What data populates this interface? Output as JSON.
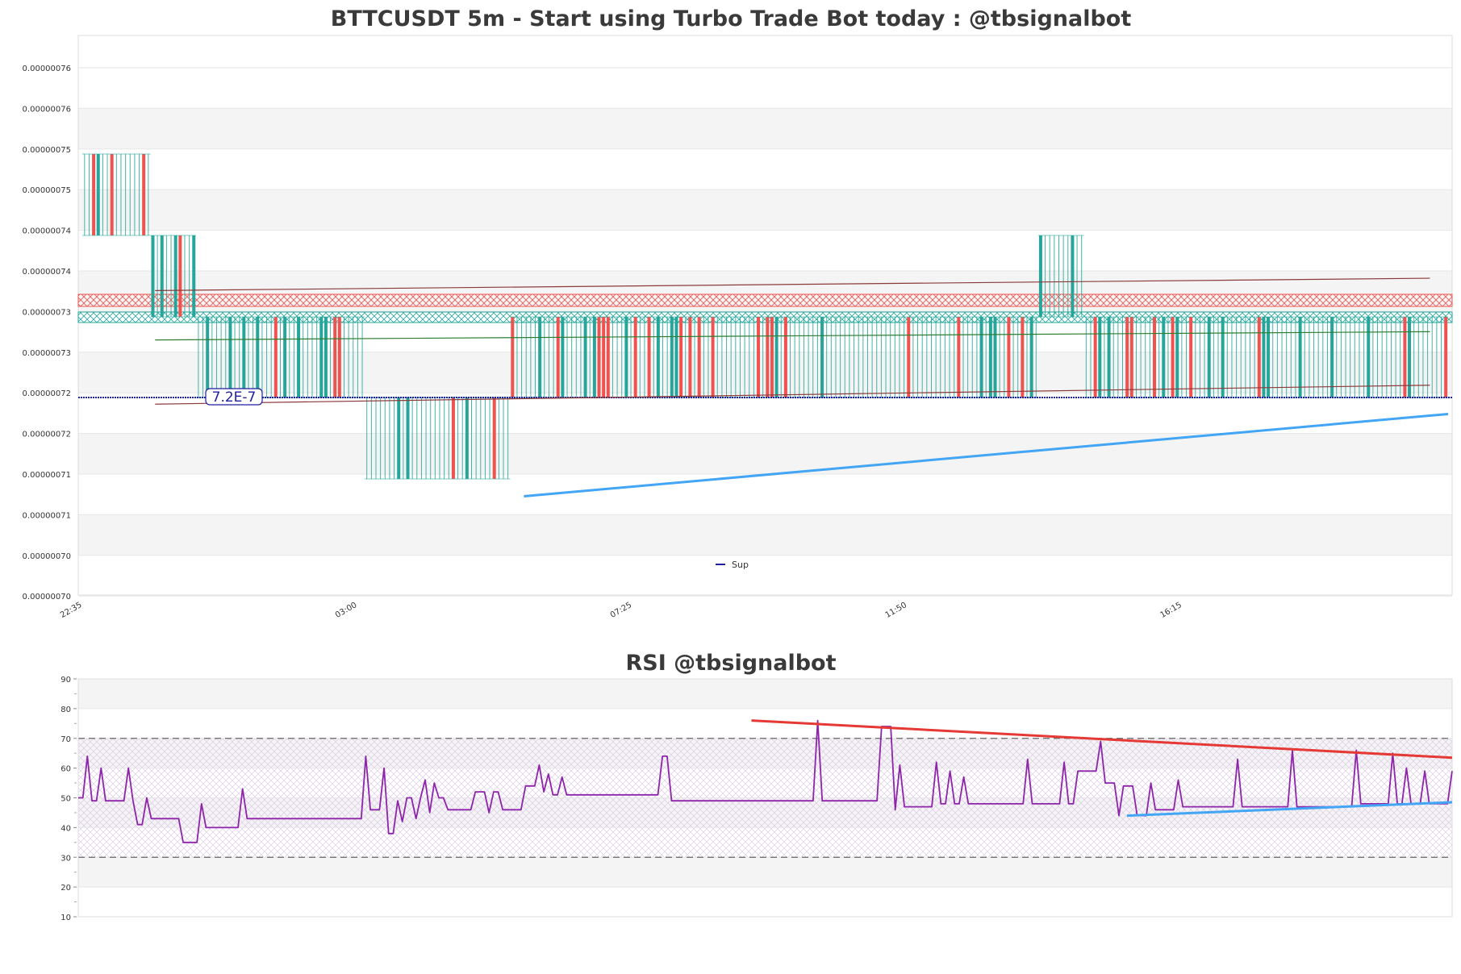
{
  "colors": {
    "bull": "#26a69a",
    "bear": "#ef5350",
    "support_level": "#1f1fa0",
    "rsi_line": "#8e24aa",
    "trend_red": "#e53935",
    "trend_blue": "#42a5f5",
    "band": "#f4f4f4",
    "grid": "#e6e6e6"
  },
  "chart_data": [
    {
      "type": "candlestick",
      "title": "BTTCUSDT 5m - Start using Turbo Trade Bot today : @tbsignalbot",
      "y_ticks": [
        "0.00000076",
        "0.00000076",
        "0.00000075",
        "0.00000075",
        "0.00000074",
        "0.00000074",
        "0.00000073",
        "0.00000073",
        "0.00000072",
        "0.00000072",
        "0.00000071",
        "0.00000071",
        "0.00000070",
        "0.00000070"
      ],
      "x_ticks": [
        "22:35",
        "03:00",
        "07:25",
        "11:50",
        "16:15"
      ],
      "ylim": [
        6.98e-07,
        7.66e-07
      ],
      "legend": [
        {
          "name": "Sup",
          "position": "bottom-center"
        }
      ],
      "support_label": "7.2E-7",
      "support_level": 7.2e-07,
      "segments": [
        {
          "from": 0,
          "to": 15,
          "top": 7.5e-07,
          "bottom": 7.4e-07
        },
        {
          "from": 15,
          "to": 25,
          "top": 7.4e-07,
          "bottom": 7.3e-07
        },
        {
          "from": 25,
          "to": 62,
          "top": 7.3e-07,
          "bottom": 7.2e-07
        },
        {
          "from": 62,
          "to": 94,
          "top": 7.2e-07,
          "bottom": 7.1e-07
        },
        {
          "from": 94,
          "to": 210,
          "top": 7.3e-07,
          "bottom": 7.2e-07
        },
        {
          "from": 210,
          "to": 220,
          "top": 7.4e-07,
          "bottom": 7.3e-07
        },
        {
          "from": 220,
          "to": 300,
          "top": 7.3e-07,
          "bottom": 7.2e-07
        }
      ],
      "resistance_zone": [
        7.31e-07,
        7.32e-07
      ],
      "support_zone": [
        7.295e-07,
        7.305e-07
      ],
      "trendlines": [
        {
          "color": "trend_blue",
          "x0": 97,
          "y0": 7.1e-07,
          "x1": 300,
          "y1": 7.2e-07
        },
        {
          "color": "dark_red",
          "x0": 16,
          "y0": 7.35e-07,
          "x1": 296,
          "y1": 7.365e-07
        },
        {
          "color": "dark_red",
          "x0": 16,
          "y0": 7.212e-07,
          "x1": 296,
          "y1": 7.235e-07
        },
        {
          "color": "dark_green",
          "x0": 16,
          "y0": 7.29e-07,
          "x1": 296,
          "y1": 7.3e-07
        }
      ]
    },
    {
      "type": "line",
      "title": "RSI @tbsignalbot",
      "y_ticks": [
        "90",
        "80",
        "70",
        "60",
        "50",
        "40",
        "30",
        "20",
        "10"
      ],
      "ylim": [
        10,
        90
      ],
      "overbought": 70,
      "oversold": 30,
      "series": [
        {
          "values": [
            50,
            50,
            64,
            49,
            49,
            60,
            49,
            49,
            49,
            49,
            49,
            60,
            49,
            41,
            41,
            50,
            43,
            43,
            43,
            43,
            43,
            43,
            43,
            35,
            35,
            35,
            35,
            48,
            40,
            40,
            40,
            40,
            40,
            40,
            40,
            40,
            53,
            43,
            43,
            43,
            43,
            43,
            43,
            43,
            43,
            43,
            43,
            43,
            43,
            43,
            43,
            43,
            43,
            43,
            43,
            43,
            43,
            43,
            43,
            43,
            43,
            43,
            43,
            64,
            46,
            46,
            46,
            60,
            38,
            38,
            49,
            42,
            50,
            50,
            43,
            50,
            56,
            45,
            55,
            50,
            50,
            46,
            46,
            46,
            46,
            46,
            46,
            52,
            52,
            52,
            45,
            52,
            52,
            46,
            46,
            46,
            46,
            46,
            54,
            54,
            54,
            61,
            52,
            58,
            51,
            51,
            57,
            51,
            51,
            51,
            51,
            51,
            51,
            51,
            51,
            51,
            51,
            51,
            51,
            51,
            51,
            51,
            51,
            51,
            51,
            51,
            51,
            51,
            64,
            64,
            49,
            49,
            49,
            49,
            49,
            49,
            49,
            49,
            49,
            49,
            49,
            49,
            49,
            49,
            49,
            49,
            49,
            49,
            49,
            49,
            49,
            49,
            49,
            49,
            49,
            49,
            49,
            49,
            49,
            49,
            49,
            49,
            76,
            49,
            49,
            49,
            49,
            49,
            49,
            49,
            49,
            49,
            49,
            49,
            49,
            49,
            74,
            74,
            74,
            46,
            61,
            47,
            47,
            47,
            47,
            47,
            47,
            47,
            62,
            48,
            48,
            59,
            48,
            48,
            57,
            48,
            48,
            48,
            48,
            48,
            48,
            48,
            48,
            48,
            48,
            48,
            48,
            48,
            63,
            48,
            48,
            48,
            48,
            48,
            48,
            48,
            62,
            48,
            48,
            59,
            59,
            59,
            59,
            59,
            69,
            55,
            55,
            55,
            44,
            54,
            54,
            54,
            44,
            44,
            44,
            55,
            46,
            46,
            46,
            46,
            46,
            56,
            47,
            47,
            47,
            47,
            47,
            47,
            47,
            47,
            47,
            47,
            47,
            47,
            63,
            47,
            47,
            47,
            47,
            47,
            47,
            47,
            47,
            47,
            47,
            47,
            66,
            47,
            47,
            47,
            47,
            47,
            47,
            47,
            47,
            47,
            47,
            47,
            47,
            47,
            66,
            48,
            48,
            48,
            48,
            48,
            48,
            48,
            65,
            48,
            48,
            60,
            48,
            48,
            48,
            59,
            48,
            48,
            48,
            48,
            48,
            59
          ]
        }
      ],
      "trendlines": [
        {
          "color": "trend_red",
          "x0": 147,
          "y0": 76,
          "x1": 300,
          "y1": 63.5
        },
        {
          "color": "trend_blue",
          "x0": 229,
          "y0": 44,
          "x1": 300,
          "y1": 48.5
        }
      ]
    }
  ]
}
